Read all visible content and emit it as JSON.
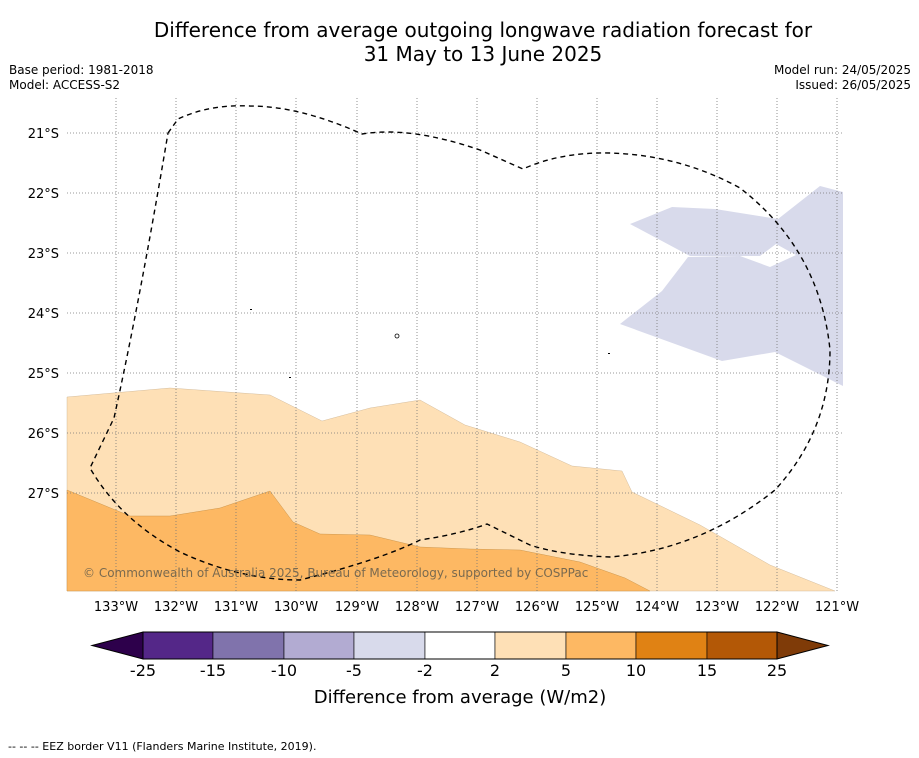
{
  "title": {
    "line1": "Difference from average outgoing longwave radiation forecast for",
    "line2": "31 May to 13 June 2025"
  },
  "meta": {
    "base_period": "Base period: 1981-2018",
    "model": "Model: ACCESS-S2",
    "model_run": "Model run: 24/05/2025",
    "issued": "Issued: 26/05/2025"
  },
  "map": {
    "lat_labels": [
      "21°S",
      "22°S",
      "23°S",
      "24°S",
      "25°S",
      "26°S",
      "27°S"
    ],
    "lon_labels": [
      "133°W",
      "132°W",
      "131°W",
      "130°W",
      "129°W",
      "128°W",
      "127°W",
      "126°W",
      "125°W",
      "124°W",
      "123°W",
      "122°W",
      "121°W"
    ],
    "copyright": "© Commonwealth of Australia 2025, Bureau of Meteorology, supported by COSPPac"
  },
  "colorbar": {
    "ticks": [
      "-25",
      "-15",
      "-10",
      "-5",
      "-2",
      "2",
      "5",
      "10",
      "15",
      "25"
    ],
    "label": "Difference from average (W/m2)",
    "colors": [
      "#2d004b",
      "#542788",
      "#8073ac",
      "#b2abd2",
      "#d8daeb",
      "#ffffff",
      "#fee0b6",
      "#fdb863",
      "#e08214",
      "#b35806",
      "#7f3b08"
    ]
  },
  "footnote": "--  --  -- EEZ border V11 (Flanders Marine Institute, 2019)."
}
